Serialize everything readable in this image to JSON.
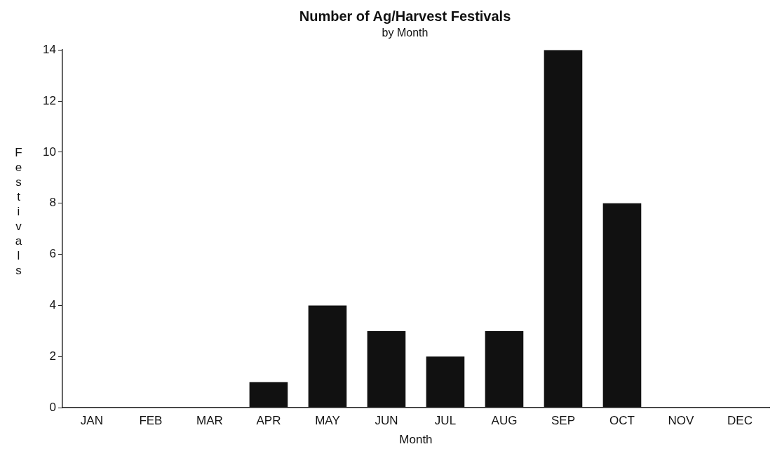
{
  "chart_data": {
    "type": "bar",
    "title": "Number of Ag/Harvest Festivals",
    "subtitle": "by Month",
    "xlabel": "Month",
    "ylabel": "Festivals",
    "categories": [
      "JAN",
      "FEB",
      "MAR",
      "APR",
      "MAY",
      "JUN",
      "JUL",
      "AUG",
      "SEP",
      "OCT",
      "NOV",
      "DEC"
    ],
    "values": [
      0,
      0,
      0,
      1,
      4,
      3,
      2,
      3,
      14,
      8,
      0,
      0
    ],
    "color": "#111111",
    "ylim": [
      0,
      14
    ],
    "yticks": [
      0,
      2,
      4,
      6,
      8,
      10,
      12,
      14
    ],
    "grid": false,
    "legend": false
  }
}
